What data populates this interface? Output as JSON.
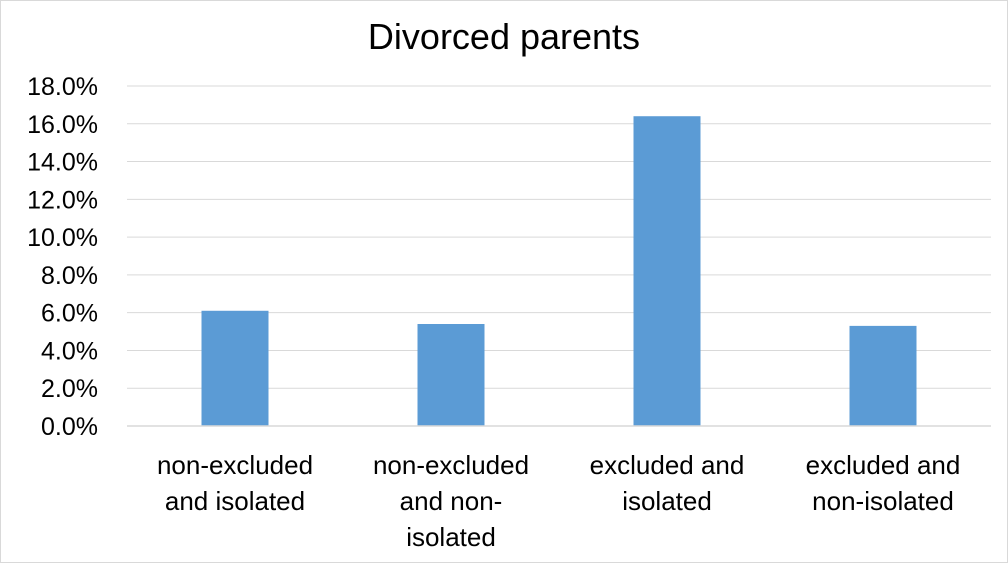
{
  "chart_data": {
    "type": "bar",
    "title": "Divorced parents",
    "xlabel": "",
    "ylabel": "",
    "categories": [
      [
        "non-excluded",
        "and isolated"
      ],
      [
        "non-excluded",
        "and non-",
        "isolated"
      ],
      [
        "excluded and",
        "isolated"
      ],
      [
        "excluded and",
        "non-isolated"
      ]
    ],
    "series": [
      {
        "values": [
          6.1,
          5.4,
          16.4,
          5.3
        ]
      }
    ],
    "ylim": [
      0,
      18
    ],
    "yticks": [
      0,
      2,
      4,
      6,
      8,
      10,
      12,
      14,
      16,
      18
    ],
    "y_format": "percent_1dp",
    "grid": true,
    "legend": "none",
    "colors": {
      "bar": "#5b9bd5",
      "grid": "#d9d9d9",
      "axis": "#d9d9d9"
    }
  }
}
